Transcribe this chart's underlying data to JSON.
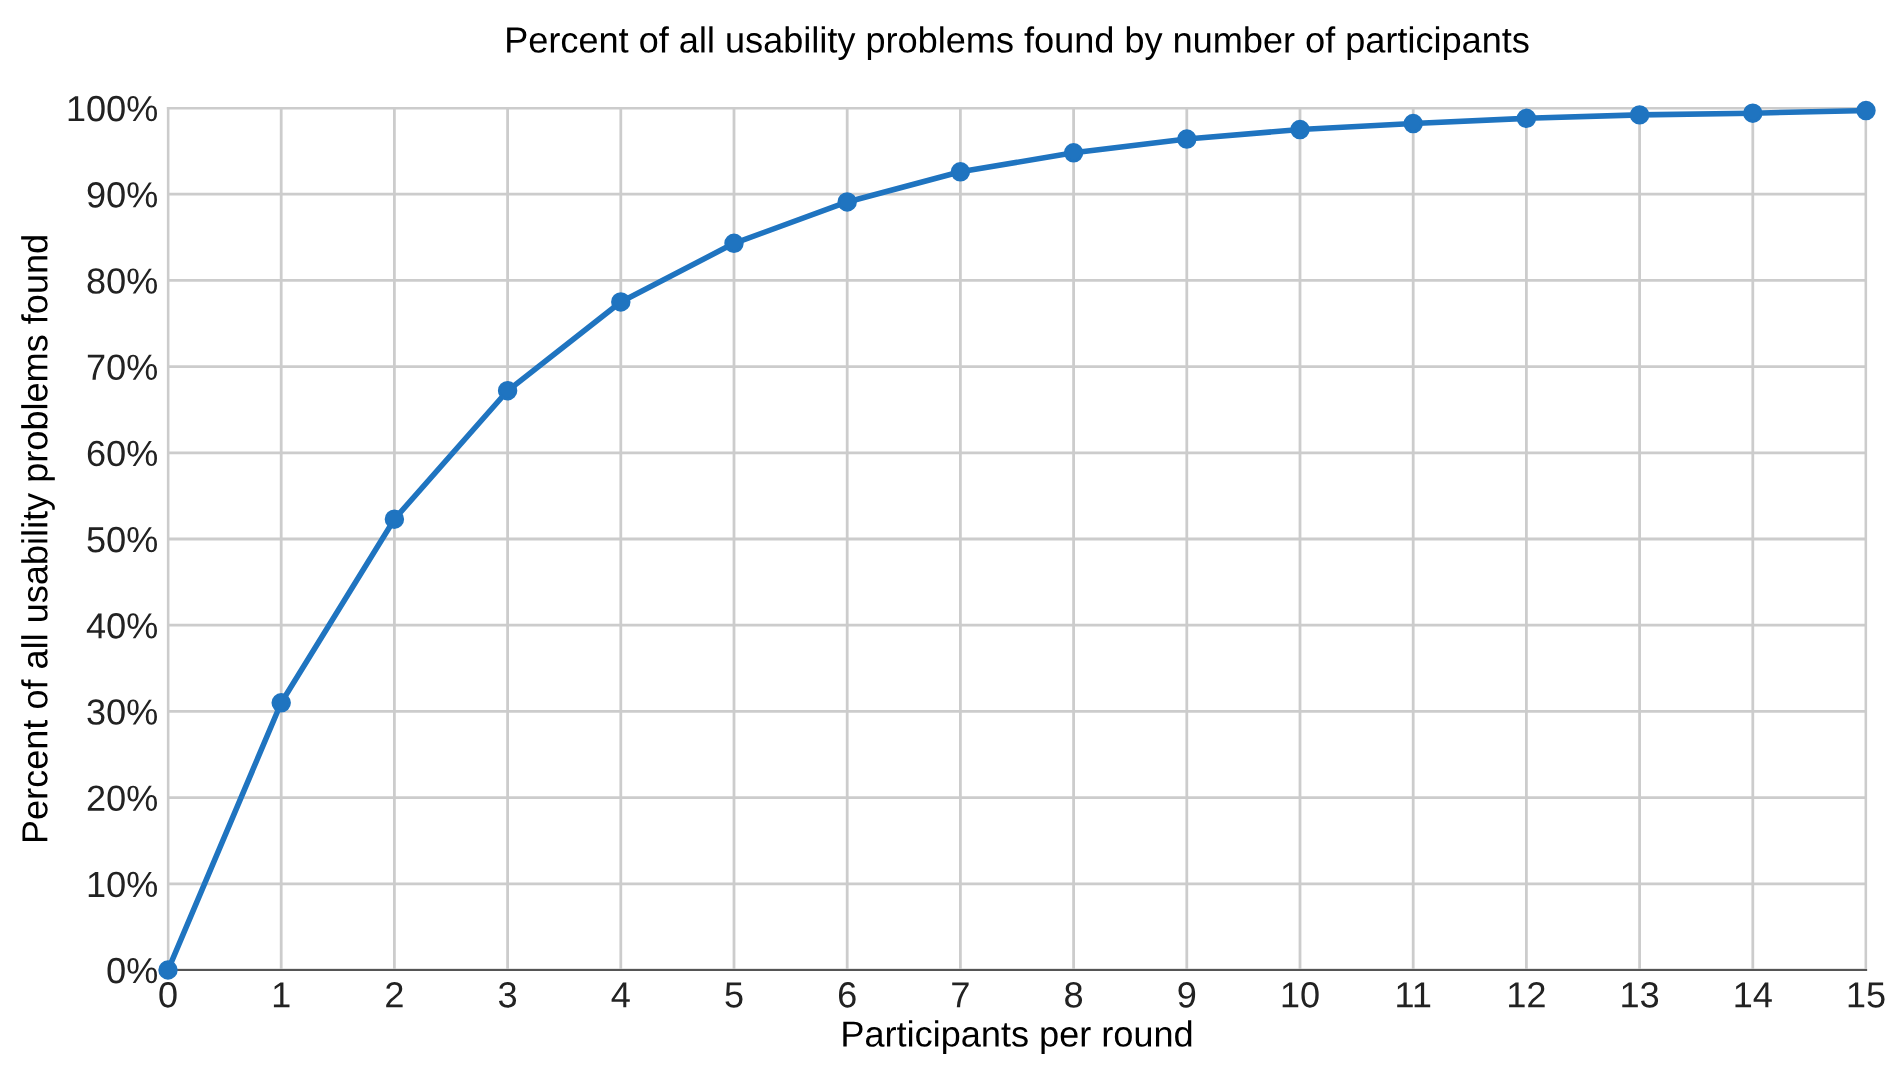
{
  "chart_data": {
    "type": "line",
    "title": "Percent of all usability problems found by number of participants",
    "xlabel": "Participants per round",
    "ylabel": "Percent of all usability problems found",
    "x": [
      0,
      1,
      2,
      3,
      4,
      5,
      6,
      7,
      8,
      9,
      10,
      11,
      12,
      13,
      14,
      15
    ],
    "series": [
      {
        "color": "#1f74c0",
        "values": [
          0,
          31,
          52.3,
          67.2,
          77.5,
          84.3,
          89.1,
          92.6,
          94.8,
          96.4,
          97.5,
          98.2,
          98.8,
          99.2,
          99.4,
          99.7
        ]
      }
    ],
    "xlim": [
      0,
      15
    ],
    "xticks": [
      0,
      1,
      2,
      3,
      4,
      5,
      6,
      7,
      8,
      9,
      10,
      11,
      12,
      13,
      14,
      15
    ],
    "ylim": [
      0,
      100
    ],
    "yticks": [
      {
        "value": 0,
        "label": "0%"
      },
      {
        "value": 10,
        "label": "10%"
      },
      {
        "value": 20,
        "label": "20%"
      },
      {
        "value": 30,
        "label": "30%"
      },
      {
        "value": 40,
        "label": "40%"
      },
      {
        "value": 50,
        "label": "50%"
      },
      {
        "value": 60,
        "label": "60%"
      },
      {
        "value": 70,
        "label": "70%"
      },
      {
        "value": 80,
        "label": "80%"
      },
      {
        "value": 90,
        "label": "90%"
      },
      {
        "value": 100,
        "label": "100%"
      }
    ],
    "grid": true,
    "marker": "circle",
    "line_style": "solid"
  }
}
